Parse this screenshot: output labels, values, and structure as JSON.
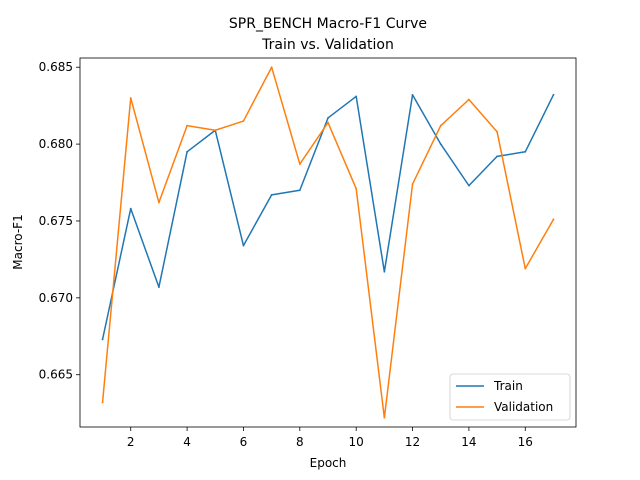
{
  "chart_data": {
    "type": "line",
    "title": "SPR_BENCH Macro-F1 Curve",
    "subtitle": "Train vs. Validation",
    "xlabel": "Epoch",
    "ylabel": "Macro-F1",
    "x": [
      1,
      2,
      3,
      4,
      5,
      6,
      7,
      8,
      9,
      10,
      11,
      12,
      13,
      14,
      15,
      16,
      17
    ],
    "xlim": [
      0.2,
      17.8
    ],
    "ylim": [
      0.6616,
      0.6856
    ],
    "xticks": [
      2,
      4,
      6,
      8,
      10,
      12,
      14,
      16
    ],
    "yticks": [
      0.665,
      0.67,
      0.675,
      0.68,
      0.685
    ],
    "ytick_labels": [
      "0.665",
      "0.670",
      "0.675",
      "0.680",
      "0.685"
    ],
    "grid": false,
    "legend_position": "lower-right",
    "series": [
      {
        "name": "Train",
        "color": "#1f77b4",
        "values": [
          0.6673,
          0.6758,
          0.6707,
          0.6795,
          0.6809,
          0.6734,
          0.6767,
          0.677,
          0.6817,
          0.6831,
          0.6717,
          0.6832,
          0.68,
          0.6773,
          0.6792,
          0.6795,
          0.6832
        ]
      },
      {
        "name": "Validation",
        "color": "#ff7f0e",
        "values": [
          0.6632,
          0.683,
          0.6762,
          0.6812,
          0.6809,
          0.6815,
          0.685,
          0.6787,
          0.6814,
          0.6771,
          0.6622,
          0.6774,
          0.6812,
          0.6829,
          0.6808,
          0.6719,
          0.6751
        ]
      }
    ]
  }
}
